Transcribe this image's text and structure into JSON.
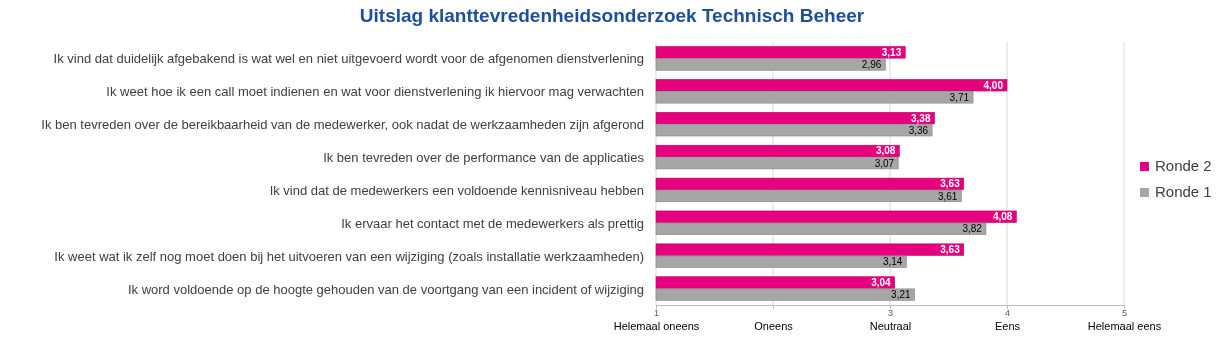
{
  "chart_data": {
    "type": "bar",
    "orientation": "horizontal",
    "title": "Uitslag klanttevredenheidsonderzoek Technisch Beheer",
    "categories": [
      "Ik vind dat duidelijk afgebakend is wat wel en niet uitgevoerd wordt voor de afgenomen dienstverlening",
      "Ik weet hoe ik een call moet indienen en wat voor dienstverlening ik hiervoor mag verwachten",
      "Ik ben tevreden over de bereikbaarheid van de medewerker, ook nadat de werkzaamheden zijn afgerond",
      "Ik ben tevreden over de performance van de applicaties",
      "Ik vind dat de medewerkers een voldoende kennisniveau hebben",
      "Ik ervaar het contact met de medewerkers als prettig",
      "Ik weet wat ik zelf nog moet doen bij het uitvoeren van een wijziging (zoals installatie werkzaamheden)",
      "Ik word voldoende op de hoogte gehouden van de voortgang van een incident of wijziging"
    ],
    "series": [
      {
        "name": "Ronde 2",
        "color": "#e6007e",
        "values": [
          3.13,
          4.0,
          3.38,
          3.08,
          3.63,
          4.08,
          3.63,
          3.04
        ],
        "value_labels": [
          "3,13",
          "4,00",
          "3,38",
          "3,08",
          "3,63",
          "4,08",
          "3,63",
          "3,04"
        ]
      },
      {
        "name": "Ronde 1",
        "color": "#a6a6a6",
        "values": [
          2.96,
          3.71,
          3.36,
          3.07,
          3.61,
          3.82,
          3.14,
          3.21
        ],
        "value_labels": [
          "2,96",
          "3,71",
          "3,36",
          "3,07",
          "3,61",
          "3,82",
          "3,14",
          "3,21"
        ]
      }
    ],
    "xlim": [
      1,
      5
    ],
    "xticks": [
      {
        "value": 1,
        "label": "1\nHelemaal oneens"
      },
      {
        "value": 2,
        "label": "Oneens"
      },
      {
        "value": 3,
        "label": "3\nNeutraal"
      },
      {
        "value": 4,
        "label": "4\nEens"
      },
      {
        "value": 5,
        "label": "5\nHelemaal eens"
      }
    ],
    "grid": "x",
    "legend": "right"
  }
}
